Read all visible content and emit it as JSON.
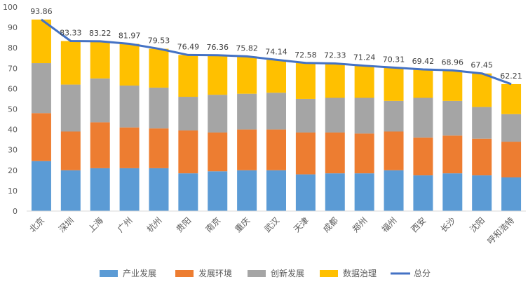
{
  "chart_data": {
    "type": "bar",
    "stacked": true,
    "ylim": [
      0,
      100
    ],
    "yticks": [
      0,
      10,
      20,
      30,
      40,
      50,
      60,
      70,
      80,
      90,
      100
    ],
    "grid": false,
    "legend_position": "bottom",
    "categories": [
      "北京",
      "深圳",
      "上海",
      "广州",
      "杭州",
      "贵阳",
      "南京",
      "重庆",
      "武汉",
      "天津",
      "成都",
      "郑州",
      "福州",
      "西安",
      "长沙",
      "沈阳",
      "呼和浩特"
    ],
    "series": [
      {
        "name": "产业发展",
        "kind": "bar",
        "color": "#5B9BD5",
        "values": [
          24.5,
          20.0,
          21.0,
          21.0,
          21.0,
          18.5,
          19.5,
          20.0,
          20.0,
          18.0,
          18.5,
          18.5,
          20.0,
          17.5,
          18.5,
          17.5,
          16.5
        ]
      },
      {
        "name": "发展环境",
        "kind": "bar",
        "color": "#ED7D31",
        "values": [
          23.5,
          19.0,
          22.5,
          20.0,
          19.5,
          21.0,
          19.0,
          20.0,
          20.0,
          20.5,
          20.0,
          19.5,
          19.0,
          18.5,
          18.5,
          18.0,
          17.5
        ]
      },
      {
        "name": "创新发展",
        "kind": "bar",
        "color": "#A5A5A5",
        "values": [
          24.5,
          23.0,
          21.5,
          20.5,
          20.0,
          16.5,
          18.5,
          17.5,
          18.0,
          16.5,
          17.0,
          17.5,
          15.0,
          19.5,
          17.0,
          15.5,
          13.5
        ]
      },
      {
        "name": "数据治理",
        "kind": "bar",
        "color": "#FFC000",
        "values": [
          21.36,
          21.33,
          18.22,
          20.47,
          19.03,
          20.49,
          19.36,
          18.32,
          16.14,
          17.58,
          16.83,
          15.74,
          16.31,
          13.92,
          14.96,
          16.45,
          14.71
        ]
      },
      {
        "name": "总分",
        "kind": "line",
        "color": "#4472C4",
        "values": [
          93.86,
          83.33,
          83.22,
          81.97,
          79.53,
          76.49,
          76.36,
          75.82,
          74.14,
          72.58,
          72.33,
          71.24,
          70.31,
          69.42,
          68.96,
          67.45,
          62.21
        ]
      }
    ]
  }
}
